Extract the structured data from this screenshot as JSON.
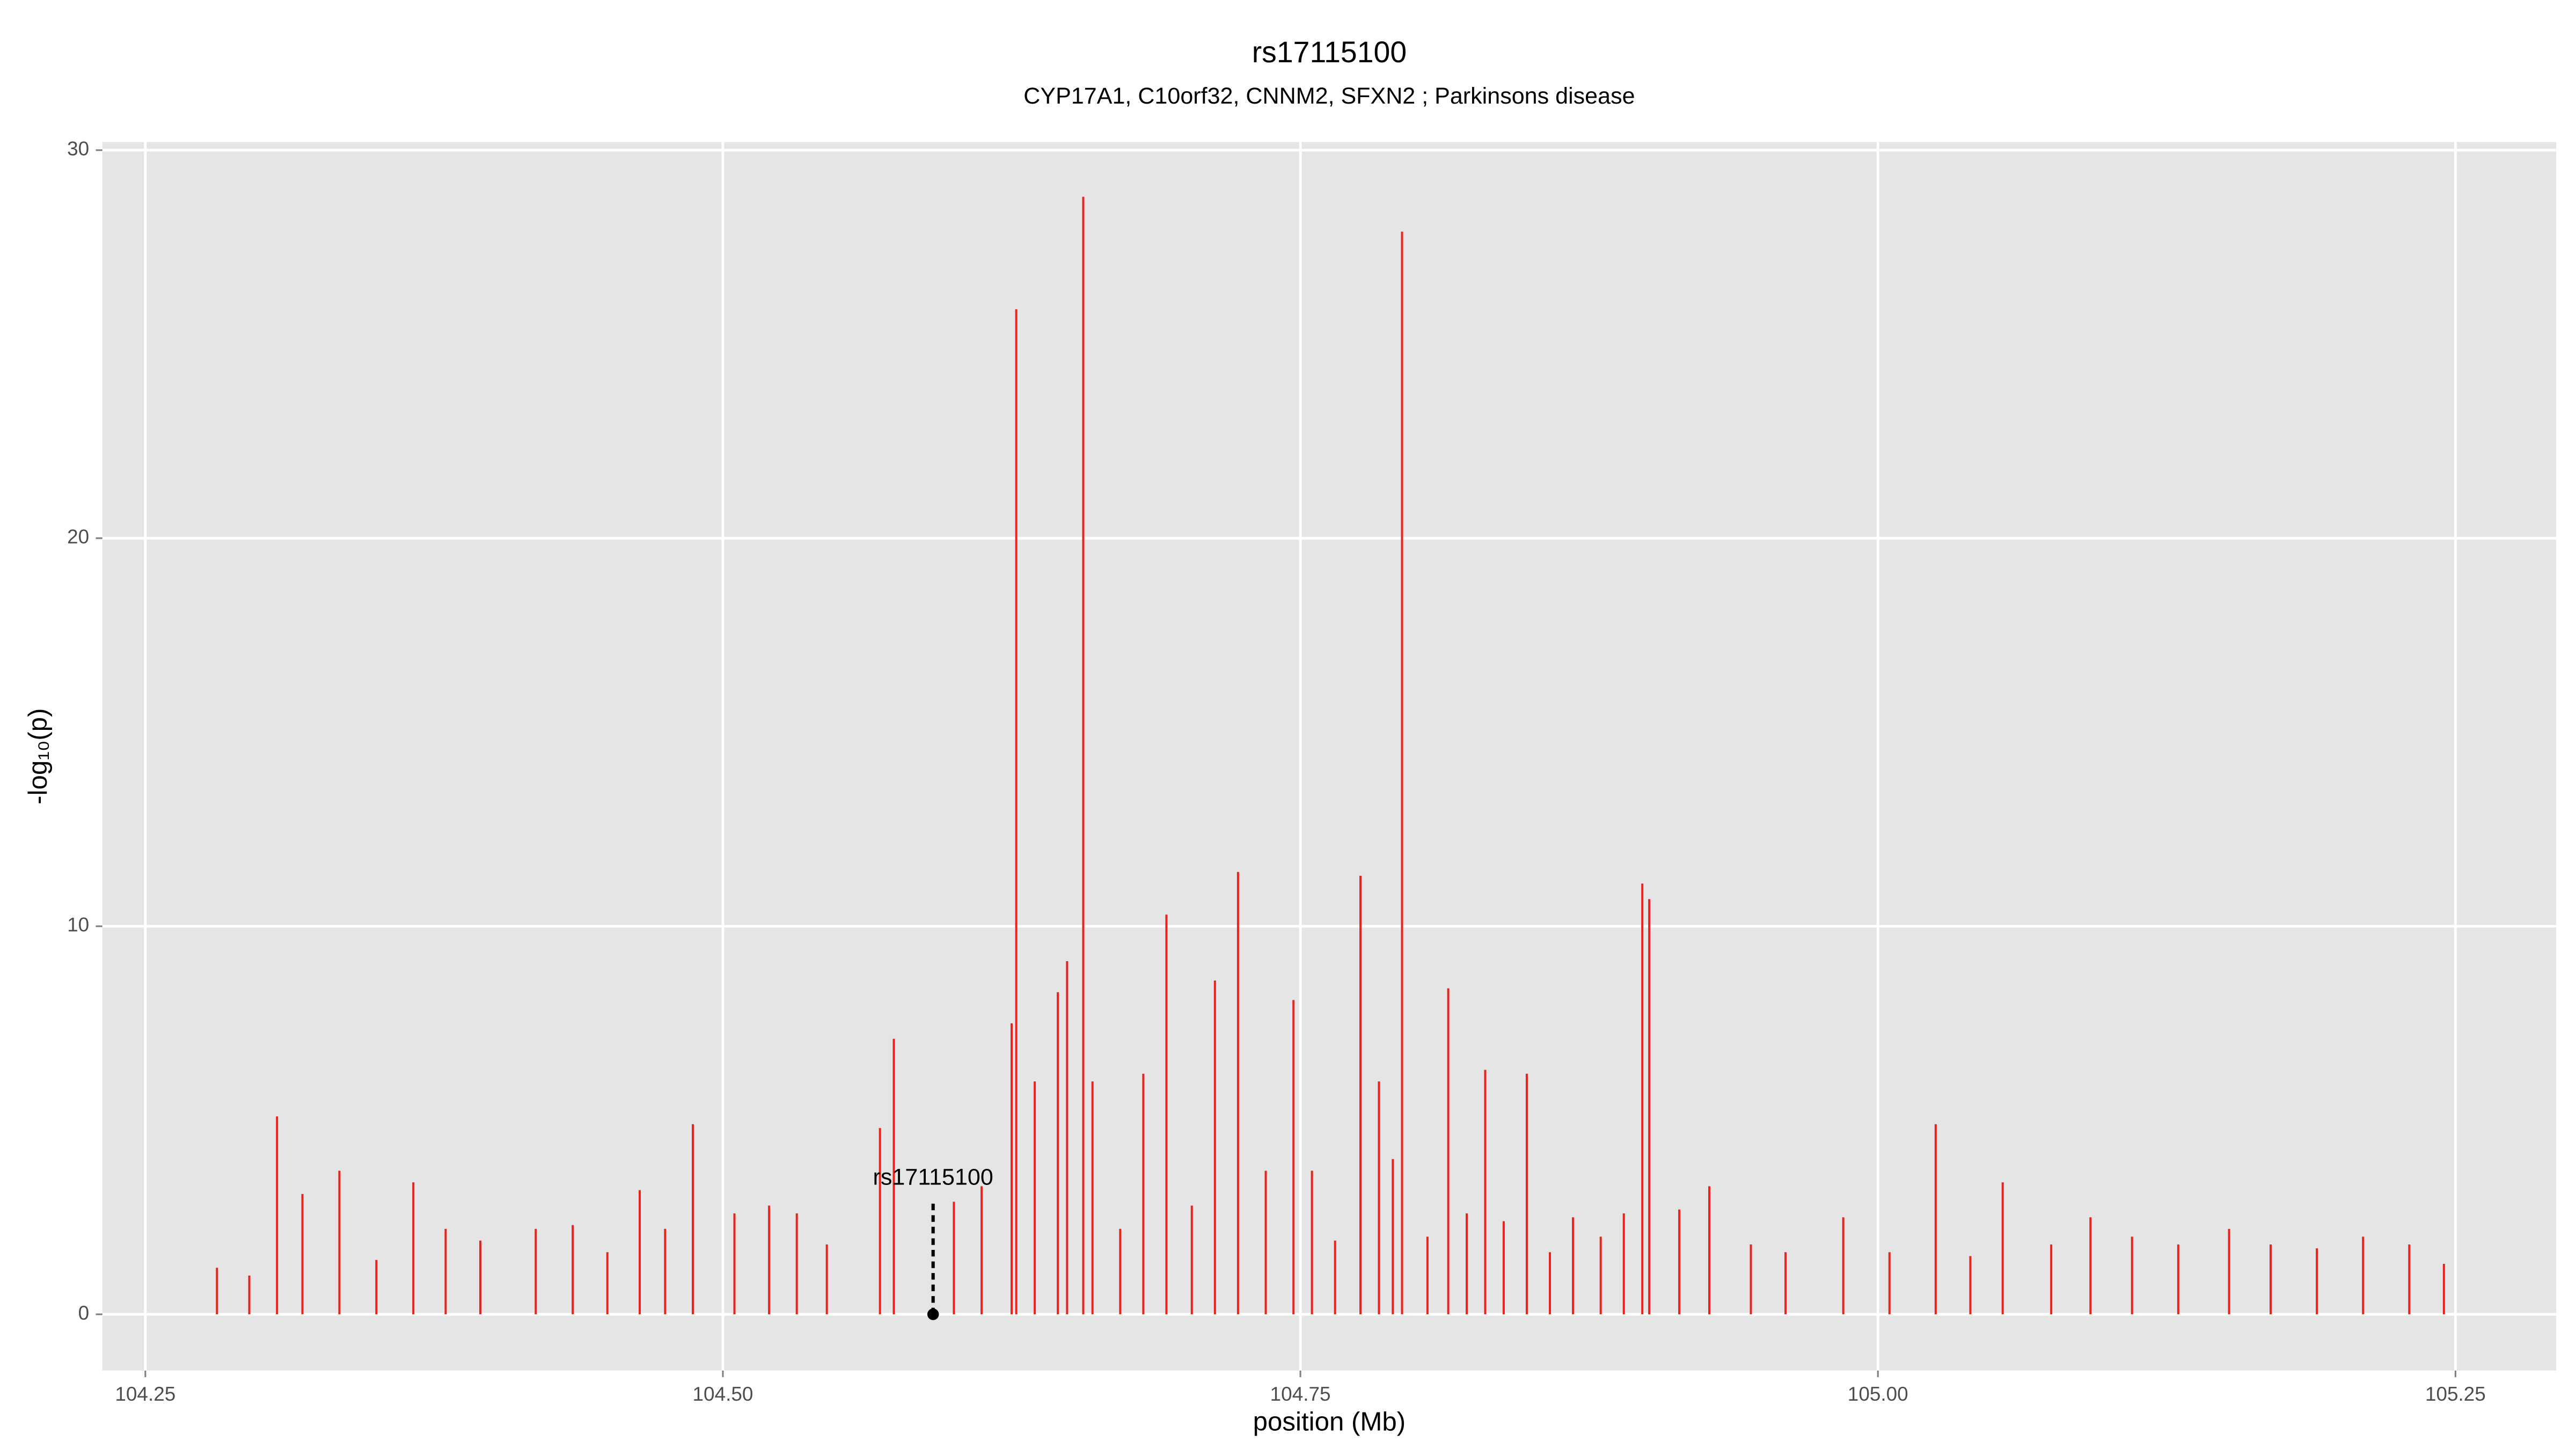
{
  "chart_data": {
    "type": "spike",
    "title": "rs17115100",
    "subtitle": "CYP17A1, C10orf32, CNNM2, SFXN2 ; Parkinsons disease",
    "x_label": "position (Mb)",
    "y_label": "-log₁₀(p)",
    "xlim": [
      104.2314,
      105.2936
    ],
    "ylim": [
      -1.45,
      30.21
    ],
    "xticks": [
      104.25,
      {
        "value": 104.5,
        "label": "104.50"
      },
      104.75,
      {
        "value": 105.0,
        "label": "105.00"
      },
      105.25
    ],
    "yticks": [
      0,
      10,
      20,
      30
    ],
    "grid": true,
    "x": [
      104.281,
      104.295,
      104.307,
      104.318,
      104.334,
      104.35,
      104.366,
      104.38,
      104.395,
      104.419,
      104.435,
      104.45,
      104.464,
      104.475,
      104.487,
      104.505,
      104.52,
      104.532,
      104.545,
      104.568,
      104.574,
      104.6,
      104.612,
      104.625,
      104.627,
      104.635,
      104.645,
      104.649,
      104.656,
      104.66,
      104.672,
      104.682,
      104.692,
      104.703,
      104.713,
      104.723,
      104.735,
      104.747,
      104.755,
      104.765,
      104.776,
      104.784,
      104.79,
      104.794,
      104.805,
      104.814,
      104.822,
      104.83,
      104.838,
      104.848,
      104.858,
      104.868,
      104.88,
      104.89,
      104.898,
      104.901,
      104.914,
      104.927,
      104.945,
      104.96,
      104.985,
      105.005,
      105.025,
      105.04,
      105.054,
      105.075,
      105.092,
      105.11,
      105.13,
      105.152,
      105.17,
      105.19,
      105.21,
      105.23,
      105.245
    ],
    "series": [
      {
        "color": "#e8241c",
        "values": [
          1.2,
          1.0,
          5.1,
          3.1,
          3.7,
          1.4,
          3.4,
          2.2,
          1.9,
          2.2,
          2.3,
          1.6,
          3.2,
          2.2,
          4.9,
          2.6,
          2.8,
          2.6,
          1.8,
          4.8,
          7.1,
          2.9,
          3.3,
          7.5,
          25.9,
          6.0,
          8.3,
          9.1,
          28.8,
          6.0,
          2.2,
          6.2,
          10.3,
          2.8,
          8.6,
          11.4,
          3.7,
          8.1,
          3.7,
          1.9,
          11.3,
          6.0,
          4.0,
          27.9,
          2.0,
          8.4,
          2.6,
          6.3,
          2.4,
          6.2,
          1.6,
          2.5,
          2.0,
          2.6,
          11.1,
          10.7,
          2.7,
          3.3,
          1.8,
          1.6,
          2.5,
          1.6,
          4.9,
          1.5,
          3.4,
          1.8,
          2.5,
          2.0,
          1.8,
          2.2,
          1.8,
          1.7,
          2.0,
          1.8,
          1.3
        ]
      }
    ],
    "annotation": {
      "text": "rs17115100",
      "x": 104.591,
      "y": 0,
      "line_top": 2.9
    }
  }
}
